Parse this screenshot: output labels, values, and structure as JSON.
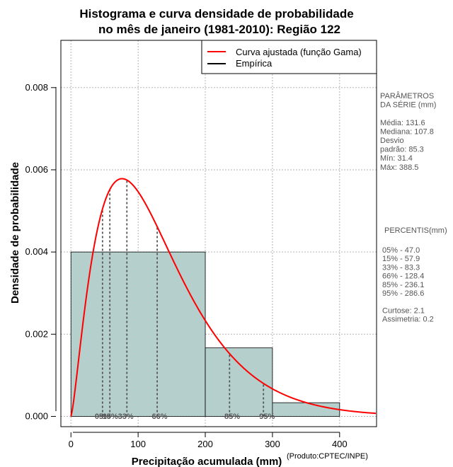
{
  "chart_data": {
    "type": "histogram",
    "title_line1": "Histograma e curva densidade de probabilidade",
    "title_line2": "no mês de janeiro (1981-2010): Região 122",
    "xlabel": "Precipitação acumulada (mm)",
    "ylabel": "Densidade de probabilidade",
    "credit": "(Produto:CPTEC/INPE)",
    "xlim": [
      -15,
      455
    ],
    "ylim": [
      -0.00025,
      0.00915
    ],
    "x_ticks": [
      0,
      100,
      200,
      300,
      400
    ],
    "x_tick_labels": [
      "0",
      "100",
      "200",
      "300",
      "400"
    ],
    "y_ticks": [
      0.0,
      0.002,
      0.004,
      0.006,
      0.008
    ],
    "y_tick_labels": [
      "0.000",
      "0.002",
      "0.004",
      "0.006",
      "0.008"
    ],
    "grid": true,
    "bins": [
      {
        "start": 0,
        "end": 200,
        "density": 0.004
      },
      {
        "start": 200,
        "end": 300,
        "density": 0.001667
      },
      {
        "start": 300,
        "end": 400,
        "density": 0.000333
      }
    ],
    "gamma_fit": {
      "shape": 2.37,
      "scale": 55.5,
      "x_max": 455
    },
    "legend": {
      "position": "top-right",
      "entries": [
        {
          "label": "Curva ajustada (função Gama)",
          "color": "#ff0000"
        },
        {
          "label": "Empírica",
          "color": "#000000"
        }
      ]
    },
    "percentile_markers": [
      {
        "label": "05%",
        "value": 47.0
      },
      {
        "label": "15%",
        "value": 57.9
      },
      {
        "label": "33%",
        "value": 83.3
      },
      {
        "label": "66%",
        "value": 128.4
      },
      {
        "label": "85%",
        "value": 236.1
      },
      {
        "label": "95%",
        "value": 286.6
      }
    ],
    "percentile_label_text": [
      {
        "text": "05%",
        "x": 47.0
      },
      {
        "text": "15%33%",
        "x": 70.0
      },
      {
        "text": "66%",
        "x": 132.0
      },
      {
        "text": "85%",
        "x": 240.0
      },
      {
        "text": "95%",
        "x": 292.0
      }
    ],
    "colors": {
      "bar_fill": "#b5cfcd",
      "curve": "#ff0000",
      "grid": "#b3b3b3",
      "marker": "#555555"
    }
  },
  "side_panel": {
    "stats_lines": [
      "PARÂMETROS",
      " DA SÉRIE (mm)",
      "",
      "Média:  131.6",
      "Mediana:  107.8",
      "Desvio",
      "padrão:  85.3",
      "Mín:  31.4",
      "Máx:  388.5"
    ],
    "percentis_title": "PERCENTIS(mm)",
    "percentis_lines": [
      "05% -  47.0",
      "15% -  57.9",
      "33% -  83.3",
      "66% -  128.4",
      "85% -  236.1",
      "95% -  286.6",
      "",
      "Curtose:  2.1",
      "Assimetria:  0.2"
    ]
  }
}
